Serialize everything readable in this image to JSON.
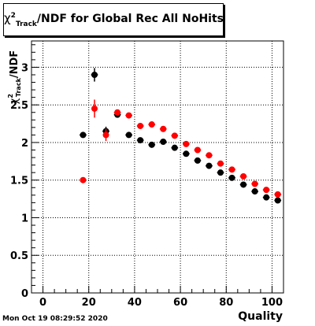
{
  "title": {
    "symbol": "χ",
    "superscript": "2",
    "subscript": "Track",
    "rest": "/NDF for Global Rec All NoHits"
  },
  "footer_timestamp": "Mon Oct 19 08:29:52 2020",
  "chart_data": {
    "type": "scatter",
    "title": "χ2Track/NDF for Global Rec All NoHits",
    "xlabel": "Quality",
    "ylabel": "χ2Track/NDF",
    "ylabel_parts": {
      "symbol": "χ",
      "superscript": "2",
      "subscript": "Track",
      "rest": "/NDF"
    },
    "xlim": [
      -5,
      105
    ],
    "ylim": [
      0,
      3.35
    ],
    "x_ticks": [
      0,
      20,
      40,
      60,
      80,
      100
    ],
    "y_ticks": [
      0,
      0.5,
      1,
      1.5,
      2,
      2.5,
      3
    ],
    "x_tick_labels": [
      "0",
      "20",
      "40",
      "60",
      "80",
      "100"
    ],
    "y_tick_labels": [
      "0",
      "0.5",
      "1",
      "1.5",
      "2",
      "2.5",
      "3"
    ],
    "x_minor_step": 5,
    "y_minor_step": 0.1,
    "grid": true,
    "colors": {
      "series_black": "#000000",
      "series_red": "#ff0000"
    },
    "series": [
      {
        "color": "#000000",
        "points": [
          {
            "x": 17.5,
            "y": 2.1,
            "xerr": 1.5,
            "yerr": 0.02
          },
          {
            "x": 22.5,
            "y": 2.9,
            "xerr": 1.5,
            "yerr": 0.09
          },
          {
            "x": 27.5,
            "y": 2.15,
            "xerr": 1.5,
            "yerr": 0.06
          },
          {
            "x": 32.5,
            "y": 2.37,
            "xerr": 1.5,
            "yerr": 0.02
          },
          {
            "x": 37.5,
            "y": 2.1,
            "xerr": 1.5,
            "yerr": 0.02
          },
          {
            "x": 42.5,
            "y": 2.03,
            "xerr": 1.5,
            "yerr": 0.02
          },
          {
            "x": 47.5,
            "y": 1.97,
            "xerr": 1.5,
            "yerr": 0.02
          },
          {
            "x": 52.5,
            "y": 2.01,
            "xerr": 1.5,
            "yerr": 0.02
          },
          {
            "x": 57.5,
            "y": 1.93,
            "xerr": 1.5,
            "yerr": 0.02
          },
          {
            "x": 62.5,
            "y": 1.85,
            "xerr": 1.5,
            "yerr": 0.02
          },
          {
            "x": 67.5,
            "y": 1.76,
            "xerr": 1.5,
            "yerr": 0.02
          },
          {
            "x": 72.5,
            "y": 1.69,
            "xerr": 1.5,
            "yerr": 0.02
          },
          {
            "x": 77.5,
            "y": 1.6,
            "xerr": 1.5,
            "yerr": 0.02
          },
          {
            "x": 82.5,
            "y": 1.53,
            "xerr": 1.5,
            "yerr": 0.02
          },
          {
            "x": 87.5,
            "y": 1.44,
            "xerr": 1.5,
            "yerr": 0.02
          },
          {
            "x": 92.5,
            "y": 1.35,
            "xerr": 1.5,
            "yerr": 0.02
          },
          {
            "x": 97.5,
            "y": 1.27,
            "xerr": 1.5,
            "yerr": 0.02
          },
          {
            "x": 102.5,
            "y": 1.23,
            "xerr": 1.5,
            "yerr": 0.02
          }
        ]
      },
      {
        "color": "#ff0000",
        "points": [
          {
            "x": 17.5,
            "y": 1.5,
            "xerr": 0,
            "yerr": 0.02
          },
          {
            "x": 22.5,
            "y": 2.45,
            "xerr": 0,
            "yerr": 0.12
          },
          {
            "x": 27.5,
            "y": 2.1,
            "xerr": 0,
            "yerr": 0.08
          },
          {
            "x": 32.5,
            "y": 2.4,
            "xerr": 1.5,
            "yerr": 0.02
          },
          {
            "x": 37.5,
            "y": 2.36,
            "xerr": 1.5,
            "yerr": 0.02
          },
          {
            "x": 42.5,
            "y": 2.22,
            "xerr": 1.5,
            "yerr": 0.02
          },
          {
            "x": 47.5,
            "y": 2.24,
            "xerr": 1.5,
            "yerr": 0.02
          },
          {
            "x": 52.5,
            "y": 2.18,
            "xerr": 1.5,
            "yerr": 0.02
          },
          {
            "x": 57.5,
            "y": 2.09,
            "xerr": 1.5,
            "yerr": 0.02
          },
          {
            "x": 62.5,
            "y": 1.98,
            "xerr": 1.5,
            "yerr": 0.02
          },
          {
            "x": 67.5,
            "y": 1.9,
            "xerr": 1.5,
            "yerr": 0.02
          },
          {
            "x": 72.5,
            "y": 1.83,
            "xerr": 1.5,
            "yerr": 0.02
          },
          {
            "x": 77.5,
            "y": 1.72,
            "xerr": 1.5,
            "yerr": 0.02
          },
          {
            "x": 82.5,
            "y": 1.64,
            "xerr": 1.5,
            "yerr": 0.02
          },
          {
            "x": 87.5,
            "y": 1.55,
            "xerr": 1.5,
            "yerr": 0.02
          },
          {
            "x": 92.5,
            "y": 1.45,
            "xerr": 1.5,
            "yerr": 0.02
          },
          {
            "x": 97.5,
            "y": 1.37,
            "xerr": 1.5,
            "yerr": 0.02
          },
          {
            "x": 102.5,
            "y": 1.31,
            "xerr": 1.5,
            "yerr": 0.02
          }
        ]
      }
    ]
  }
}
